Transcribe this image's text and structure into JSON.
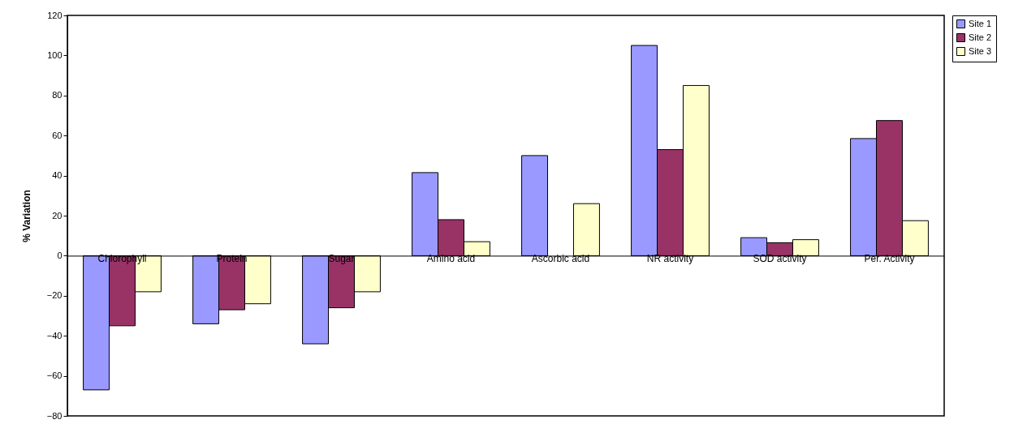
{
  "chart_data": {
    "type": "bar",
    "ylabel": "% Variation",
    "categories": [
      "Chlorophyll",
      "Protein",
      "Sugar",
      "Amino acid",
      "Ascorbic acid",
      "NR activity",
      "SOD activity",
      "Per. Activity"
    ],
    "series": [
      {
        "name": "Site 1",
        "color": "#9999ff",
        "values": [
          -67,
          -34,
          -44,
          41.5,
          50,
          105,
          9,
          58.5
        ]
      },
      {
        "name": "Site 2",
        "color": "#993366",
        "values": [
          -35,
          -27,
          -26,
          18,
          null,
          53,
          6.5,
          67.5
        ]
      },
      {
        "name": "Site 3",
        "color": "#ffffcc",
        "values": [
          -18,
          -24,
          -18,
          7,
          26,
          85,
          8,
          17.5
        ]
      }
    ],
    "ylim": [
      -80,
      120
    ],
    "yticks": [
      -80,
      -60,
      -40,
      -20,
      0,
      20,
      40,
      60,
      80,
      100,
      120
    ],
    "grid": false,
    "legend": "right"
  }
}
